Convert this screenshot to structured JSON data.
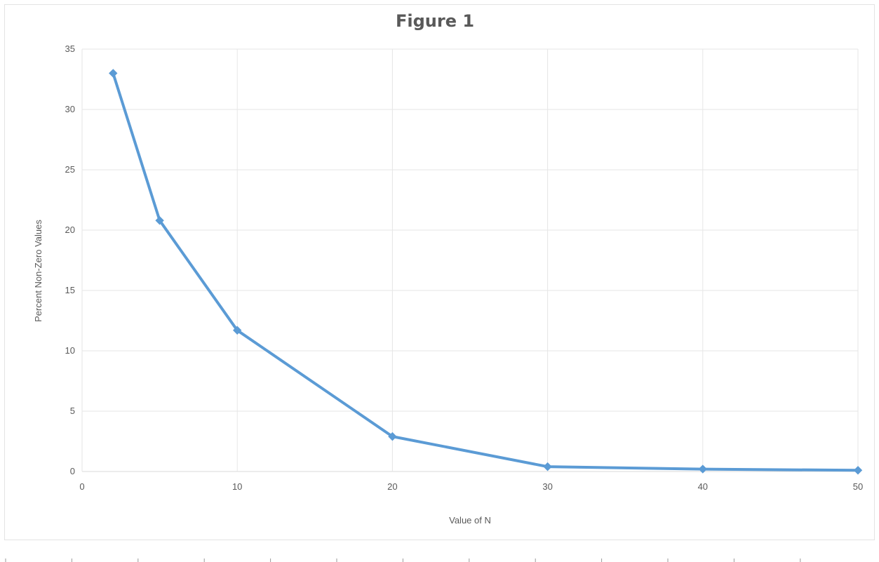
{
  "chart_data": {
    "type": "line",
    "title": "Figure 1",
    "xlabel": "Value of N",
    "ylabel": "Percent Non-Zero Values",
    "xlim": [
      0,
      50
    ],
    "ylim": [
      0,
      35
    ],
    "x_ticks": [
      0,
      10,
      20,
      30,
      40,
      50
    ],
    "y_ticks": [
      0,
      5,
      10,
      15,
      20,
      25,
      30,
      35
    ],
    "grid": true,
    "legend": "none",
    "series": [
      {
        "color": "#5b9bd5",
        "marker": "diamond",
        "x": [
          2,
          5,
          10,
          20,
          30,
          40,
          50
        ],
        "y": [
          33,
          20.8,
          11.7,
          2.9,
          0.4,
          0.2,
          0.1
        ]
      }
    ]
  }
}
